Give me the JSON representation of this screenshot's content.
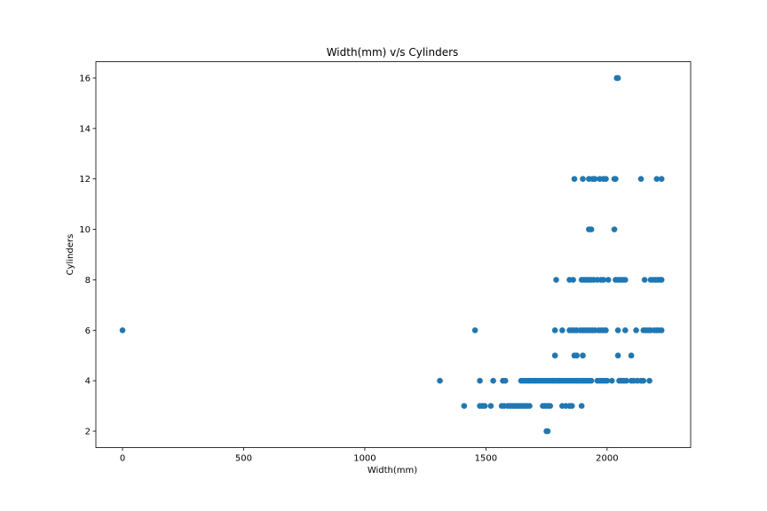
{
  "chart_data": {
    "type": "scatter",
    "title": "Width(mm) v/s Cylinders",
    "xlabel": "Width(mm)",
    "ylabel": "Cylinders",
    "xlim": [
      -110,
      2345
    ],
    "ylim": [
      1.35,
      16.65
    ],
    "xticks": [
      0,
      500,
      1000,
      1500,
      2000
    ],
    "yticks": [
      2,
      4,
      6,
      8,
      10,
      12,
      14,
      16
    ],
    "grid": false,
    "color": "#1f77b4",
    "series": [
      {
        "name": "Width(mm) vs Cylinders",
        "points": [
          [
            0,
            6
          ],
          [
            1455,
            6
          ],
          [
            1310,
            4
          ],
          [
            1475,
            4
          ],
          [
            1530,
            4
          ],
          [
            1570,
            4
          ],
          [
            1580,
            4
          ],
          [
            1645,
            4
          ],
          [
            1655,
            4
          ],
          [
            1665,
            4
          ],
          [
            1675,
            4
          ],
          [
            1685,
            4
          ],
          [
            1695,
            4
          ],
          [
            1705,
            4
          ],
          [
            1715,
            4
          ],
          [
            1725,
            4
          ],
          [
            1735,
            4
          ],
          [
            1745,
            4
          ],
          [
            1755,
            4
          ],
          [
            1765,
            4
          ],
          [
            1775,
            4
          ],
          [
            1785,
            4
          ],
          [
            1795,
            4
          ],
          [
            1805,
            4
          ],
          [
            1815,
            4
          ],
          [
            1825,
            4
          ],
          [
            1835,
            4
          ],
          [
            1845,
            4
          ],
          [
            1855,
            4
          ],
          [
            1865,
            4
          ],
          [
            1875,
            4
          ],
          [
            1885,
            4
          ],
          [
            1895,
            4
          ],
          [
            1905,
            4
          ],
          [
            1915,
            4
          ],
          [
            1925,
            4
          ],
          [
            1935,
            4
          ],
          [
            1960,
            4
          ],
          [
            1970,
            4
          ],
          [
            1980,
            4
          ],
          [
            1990,
            4
          ],
          [
            2000,
            4
          ],
          [
            2020,
            4
          ],
          [
            2050,
            4
          ],
          [
            2060,
            4
          ],
          [
            2070,
            4
          ],
          [
            2080,
            4
          ],
          [
            2100,
            4
          ],
          [
            2110,
            4
          ],
          [
            2125,
            4
          ],
          [
            2140,
            4
          ],
          [
            2150,
            4
          ],
          [
            2175,
            4
          ],
          [
            1410,
            3
          ],
          [
            1475,
            3
          ],
          [
            1485,
            3
          ],
          [
            1495,
            3
          ],
          [
            1520,
            3
          ],
          [
            1565,
            3
          ],
          [
            1575,
            3
          ],
          [
            1590,
            3
          ],
          [
            1600,
            3
          ],
          [
            1610,
            3
          ],
          [
            1620,
            3
          ],
          [
            1630,
            3
          ],
          [
            1640,
            3
          ],
          [
            1650,
            3
          ],
          [
            1660,
            3
          ],
          [
            1670,
            3
          ],
          [
            1680,
            3
          ],
          [
            1735,
            3
          ],
          [
            1745,
            3
          ],
          [
            1755,
            3
          ],
          [
            1765,
            3
          ],
          [
            1815,
            3
          ],
          [
            1830,
            3
          ],
          [
            1845,
            3
          ],
          [
            1855,
            3
          ],
          [
            1895,
            3
          ],
          [
            1750,
            2
          ],
          [
            1755,
            2
          ],
          [
            1785,
            5
          ],
          [
            1865,
            5
          ],
          [
            1875,
            5
          ],
          [
            1900,
            5
          ],
          [
            2045,
            5
          ],
          [
            2100,
            5
          ],
          [
            1785,
            6
          ],
          [
            1815,
            6
          ],
          [
            1845,
            6
          ],
          [
            1855,
            6
          ],
          [
            1865,
            6
          ],
          [
            1875,
            6
          ],
          [
            1890,
            6
          ],
          [
            1900,
            6
          ],
          [
            1910,
            6
          ],
          [
            1920,
            6
          ],
          [
            1930,
            6
          ],
          [
            1940,
            6
          ],
          [
            1950,
            6
          ],
          [
            1965,
            6
          ],
          [
            1975,
            6
          ],
          [
            1985,
            6
          ],
          [
            1995,
            6
          ],
          [
            2045,
            6
          ],
          [
            2075,
            6
          ],
          [
            2120,
            6
          ],
          [
            2150,
            6
          ],
          [
            2160,
            6
          ],
          [
            2170,
            6
          ],
          [
            2180,
            6
          ],
          [
            2195,
            6
          ],
          [
            2205,
            6
          ],
          [
            2215,
            6
          ],
          [
            2225,
            6
          ],
          [
            1790,
            8
          ],
          [
            1845,
            8
          ],
          [
            1860,
            8
          ],
          [
            1895,
            8
          ],
          [
            1905,
            8
          ],
          [
            1915,
            8
          ],
          [
            1925,
            8
          ],
          [
            1935,
            8
          ],
          [
            1945,
            8
          ],
          [
            1960,
            8
          ],
          [
            1975,
            8
          ],
          [
            1985,
            8
          ],
          [
            2005,
            8
          ],
          [
            2035,
            8
          ],
          [
            2045,
            8
          ],
          [
            2055,
            8
          ],
          [
            2065,
            8
          ],
          [
            2075,
            8
          ],
          [
            2155,
            8
          ],
          [
            2180,
            8
          ],
          [
            2190,
            8
          ],
          [
            2200,
            8
          ],
          [
            2210,
            8
          ],
          [
            2220,
            8
          ],
          [
            2225,
            8
          ],
          [
            1925,
            10
          ],
          [
            1935,
            10
          ],
          [
            2030,
            10
          ],
          [
            1865,
            12
          ],
          [
            1900,
            12
          ],
          [
            1925,
            12
          ],
          [
            1940,
            12
          ],
          [
            1950,
            12
          ],
          [
            1970,
            12
          ],
          [
            1985,
            12
          ],
          [
            1995,
            12
          ],
          [
            2030,
            12
          ],
          [
            2035,
            12
          ],
          [
            2140,
            12
          ],
          [
            2205,
            12
          ],
          [
            2225,
            12
          ],
          [
            2040,
            16
          ],
          [
            2045,
            16
          ]
        ]
      }
    ]
  }
}
